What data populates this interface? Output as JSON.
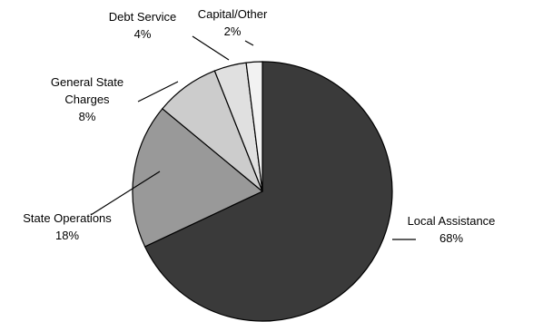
{
  "chart_data": {
    "type": "pie",
    "title": "",
    "start_angle_deg": 0,
    "direction": "clockwise",
    "slices": [
      {
        "label": "Local Assistance",
        "value": 68,
        "display": "68%",
        "color": "#3a3a3a"
      },
      {
        "label": "State Operations",
        "value": 18,
        "display": "18%",
        "color": "#999999"
      },
      {
        "label": "General State Charges",
        "value": 8,
        "display": "8%",
        "color": "#cccccc"
      },
      {
        "label": "Debt Service",
        "value": 4,
        "display": "4%",
        "color": "#e0e0e0"
      },
      {
        "label": "Capital/Other",
        "value": 2,
        "display": "2%",
        "color": "#f2f2f2"
      }
    ],
    "legend": false
  }
}
